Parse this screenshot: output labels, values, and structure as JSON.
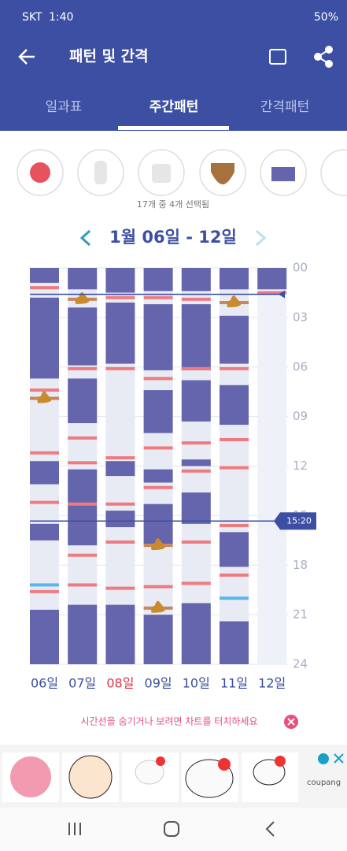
{
  "status_bar": {
    "carrier": "SKT",
    "time": "1:40",
    "battery": "50%"
  },
  "header": {
    "title": "패턴 및 간격"
  },
  "tabs": [
    "일과표",
    "주간패턴",
    "간격패턴"
  ],
  "selection_note": "17개 중 4개 선택됨",
  "week_label": "1월 06일 - 12일",
  "chart": {
    "ylim": [
      0,
      24
    ],
    "yticks": [
      {
        "value": 0,
        "label": "00"
      },
      {
        "value": 3,
        "label": "03"
      },
      {
        "value": 6,
        "label": "06"
      },
      {
        "value": 9,
        "label": "09"
      },
      12,
      15,
      18,
      21,
      24
    ],
    "colors": {
      "sleep": "#6465ad",
      "feed": "#ee7b80",
      "poop": "#c8865c",
      "bath": "#5ab6ea"
    },
    "now_line": 1.6,
    "selected_time": {
      "value": 15.33,
      "label": "15:20"
    },
    "days": [
      {
        "label": "06일",
        "label_color": "#3b4d9c",
        "sleep": [
          [
            0,
            0.9
          ],
          [
            1.8,
            6.7
          ],
          [
            11.7,
            13.1
          ],
          [
            15.5,
            16.5
          ],
          [
            20.7,
            24
          ]
        ],
        "feeds": [
          1.2,
          7.4,
          11.2,
          14.2,
          19.6
        ],
        "poops": [
          7.9
        ],
        "baths": [
          19.2
        ]
      },
      {
        "label": "07일",
        "label_color": "#3b4d9c",
        "sleep": [
          [
            0,
            1.3
          ],
          [
            2.4,
            5.9
          ],
          [
            6.7,
            9.4
          ],
          [
            12.2,
            16.8
          ],
          [
            20.4,
            24
          ]
        ],
        "feeds": [
          6.1,
          10.3,
          11.8,
          14.3,
          17.4,
          19.2
        ],
        "poops": [
          1.9
        ],
        "baths": []
      },
      {
        "label": "08일",
        "label_color": "#d9374a",
        "sleep": [
          [
            0,
            1.5
          ],
          [
            2.1,
            5.8
          ],
          [
            11.7,
            12.6
          ],
          [
            14.7,
            15.7
          ],
          [
            20.4,
            24
          ]
        ],
        "feeds": [
          1.8,
          6.1,
          11.5,
          14.3,
          16.6,
          19.4
        ],
        "poops": [],
        "baths": []
      },
      {
        "label": "09일",
        "label_color": "#3b4d9c",
        "sleep": [
          [
            0,
            1.4
          ],
          [
            2.2,
            6.2
          ],
          [
            7.4,
            10.0
          ],
          [
            12.2,
            13.0
          ],
          [
            14.3,
            16.7
          ],
          [
            21.0,
            24
          ]
        ],
        "feeds": [
          1.8,
          6.7,
          10.9,
          13.3,
          19.3
        ],
        "poops": [
          16.8,
          20.6
        ],
        "baths": []
      },
      {
        "label": "10일",
        "label_color": "#3b4d9c",
        "sleep": [
          [
            0,
            1.4
          ],
          [
            2.2,
            6.2
          ],
          [
            6.8,
            9.3
          ],
          [
            11.6,
            12.0
          ],
          [
            13.6,
            15.5
          ],
          [
            20.3,
            24
          ]
        ],
        "feeds": [
          1.9,
          6.1,
          10.6,
          12.3,
          16.6,
          19.1
        ],
        "poops": [],
        "baths": []
      },
      {
        "label": "11일",
        "label_color": "#3b4d9c",
        "sleep": [
          [
            0,
            1.3
          ],
          [
            2.9,
            5.8
          ],
          [
            7.1,
            9.5
          ],
          [
            16.0,
            18.1
          ],
          [
            21.4,
            24
          ]
        ],
        "feeds": [
          6.1,
          10.4,
          12.1,
          15.6,
          18.6
        ],
        "poops": [
          2.1
        ],
        "baths": [
          20.0
        ]
      },
      {
        "label": "12일",
        "label_color": "#3b4d9c",
        "sleep": [
          [
            0,
            1.3
          ]
        ],
        "feeds": [
          1.5
        ],
        "poops": [],
        "baths": []
      }
    ]
  },
  "hint": "시간선을 숨기거나 보려면 차트를 터치하세요",
  "ad": {
    "brand": "coupang"
  }
}
